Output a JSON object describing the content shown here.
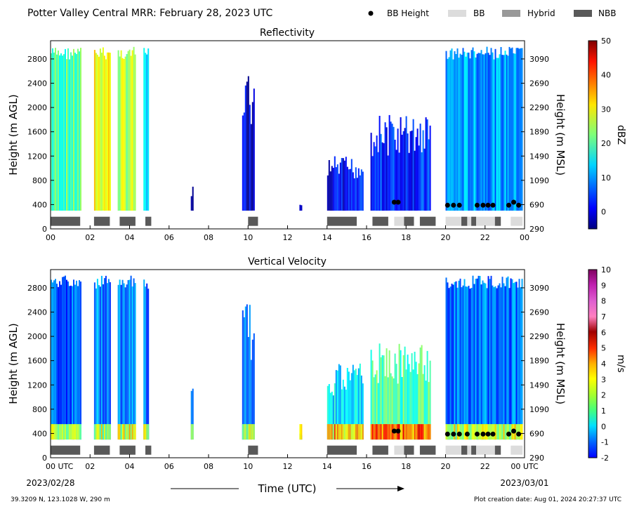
{
  "header": {
    "title": "Potter Valley Central MRR:  February 28, 2023 UTC",
    "legend": {
      "bb_height": "BB Height",
      "bb": "BB",
      "hybrid": "Hybrid",
      "nbb": "NBB"
    }
  },
  "colors": {
    "bb": "#dcdcdc",
    "hybrid": "#999999",
    "nbb": "#595959",
    "bb_height_marker": "#000000"
  },
  "footer": {
    "location": "39.3209 N, 123.1028 W, 290 m",
    "creation": "Plot creation date: Aug 01, 2024 20:27:37 UTC",
    "x_axis_title": "Time (UTC)",
    "start_date": "2023/02/28",
    "end_date": "2023/03/01"
  },
  "chart_data": [
    {
      "type": "heatmap",
      "title": "Reflectivity",
      "ylabel": "Height (m AGL)",
      "ylabel_right": "Height (m MSL)",
      "xlim": [
        0,
        24
      ],
      "ylim": [
        0,
        3100
      ],
      "x_ticks": [
        "00",
        "02",
        "04",
        "06",
        "08",
        "10",
        "12",
        "14",
        "16",
        "18",
        "20",
        "22",
        "00"
      ],
      "y_ticks": [
        0,
        400,
        800,
        1200,
        1600,
        2000,
        2400,
        2800
      ],
      "y_ticks_right": [
        290,
        690,
        1090,
        1490,
        1890,
        2290,
        2690,
        3090
      ],
      "colorbar": {
        "label": "dBZ",
        "min": -5,
        "max": 50,
        "ticks": [
          0,
          10,
          20,
          30,
          40,
          50
        ]
      },
      "precip_segments": [
        {
          "start": 0.0,
          "end": 1.5,
          "top": 3000,
          "level": 0.45
        },
        {
          "start": 2.2,
          "end": 3.0,
          "top": 3000,
          "level": 0.62
        },
        {
          "start": 3.4,
          "end": 4.3,
          "top": 3000,
          "level": 0.55
        },
        {
          "start": 4.7,
          "end": 4.95,
          "top": 3000,
          "level": 0.3
        },
        {
          "start": 7.1,
          "end": 7.2,
          "top": 700,
          "level": 0.08
        },
        {
          "start": 9.7,
          "end": 10.3,
          "top": 2600,
          "level": 0.1
        },
        {
          "start": 12.6,
          "end": 12.7,
          "top": 400,
          "level": 0.1
        },
        {
          "start": 14.0,
          "end": 15.8,
          "top": 1200,
          "level": 0.12
        },
        {
          "start": 16.2,
          "end": 19.2,
          "top": 1900,
          "level": 0.16
        },
        {
          "start": 20.0,
          "end": 23.9,
          "top": 3000,
          "level": 0.28
        }
      ],
      "bb_classification": [
        {
          "start": 0.0,
          "end": 1.5,
          "class": "NBB"
        },
        {
          "start": 2.2,
          "end": 3.0,
          "class": "NBB"
        },
        {
          "start": 3.5,
          "end": 4.3,
          "class": "NBB"
        },
        {
          "start": 4.8,
          "end": 5.1,
          "class": "NBB"
        },
        {
          "start": 10.0,
          "end": 10.5,
          "class": "NBB"
        },
        {
          "start": 14.0,
          "end": 15.5,
          "class": "NBB"
        },
        {
          "start": 16.3,
          "end": 17.1,
          "class": "NBB"
        },
        {
          "start": 17.4,
          "end": 17.9,
          "class": "BB"
        },
        {
          "start": 17.9,
          "end": 18.4,
          "class": "NBB"
        },
        {
          "start": 18.7,
          "end": 19.5,
          "class": "NBB"
        },
        {
          "start": 20.0,
          "end": 20.8,
          "class": "BB"
        },
        {
          "start": 20.8,
          "end": 21.1,
          "class": "NBB"
        },
        {
          "start": 21.1,
          "end": 21.3,
          "class": "BB"
        },
        {
          "start": 21.3,
          "end": 21.55,
          "class": "NBB"
        },
        {
          "start": 21.55,
          "end": 22.5,
          "class": "BB"
        },
        {
          "start": 22.5,
          "end": 22.8,
          "class": "NBB"
        },
        {
          "start": 23.3,
          "end": 23.9,
          "class": "BB"
        }
      ],
      "bb_heights": [
        {
          "x": 17.4,
          "y": 440
        },
        {
          "x": 17.6,
          "y": 440
        },
        {
          "x": 20.1,
          "y": 390
        },
        {
          "x": 20.4,
          "y": 390
        },
        {
          "x": 20.7,
          "y": 390
        },
        {
          "x": 21.6,
          "y": 390
        },
        {
          "x": 21.9,
          "y": 390
        },
        {
          "x": 22.15,
          "y": 390
        },
        {
          "x": 22.4,
          "y": 390
        },
        {
          "x": 23.2,
          "y": 390
        },
        {
          "x": 23.45,
          "y": 440
        },
        {
          "x": 23.7,
          "y": 390
        }
      ]
    },
    {
      "type": "heatmap",
      "title": "Vertical Velocity",
      "ylabel": "Height (m AGL)",
      "ylabel_right": "Height (m MSL)",
      "xlim": [
        0,
        24
      ],
      "ylim": [
        0,
        3100
      ],
      "x_ticks": [
        "00 UTC",
        "02",
        "04",
        "06",
        "08",
        "10",
        "12",
        "14",
        "16",
        "18",
        "20",
        "22",
        "00 UTC"
      ],
      "y_ticks": [
        0,
        400,
        800,
        1200,
        1600,
        2000,
        2400,
        2800
      ],
      "y_ticks_right": [
        290,
        690,
        1090,
        1490,
        1890,
        2290,
        2690,
        3090
      ],
      "colorbar": {
        "label": "m/s",
        "min": -2,
        "max": 10,
        "ticks": [
          -2,
          -1,
          0,
          1,
          2,
          3,
          4,
          5,
          6,
          7,
          8,
          9,
          10
        ]
      },
      "precip_segments": [
        {
          "start": 0.0,
          "end": 1.5,
          "top": 3000,
          "level": 0.22
        },
        {
          "start": 2.2,
          "end": 3.0,
          "top": 3000,
          "level": 0.26
        },
        {
          "start": 3.4,
          "end": 4.3,
          "top": 3000,
          "level": 0.25
        },
        {
          "start": 4.7,
          "end": 4.95,
          "top": 3000,
          "level": 0.24
        },
        {
          "start": 7.1,
          "end": 7.2,
          "top": 1300,
          "level": 0.28
        },
        {
          "start": 9.7,
          "end": 10.3,
          "top": 2600,
          "level": 0.26
        },
        {
          "start": 12.6,
          "end": 12.7,
          "top": 400,
          "level": 0.35
        },
        {
          "start": 14.0,
          "end": 15.8,
          "top": 1600,
          "level": 0.35
        },
        {
          "start": 16.2,
          "end": 19.2,
          "top": 1900,
          "level": 0.45
        },
        {
          "start": 20.0,
          "end": 23.9,
          "top": 3000,
          "level": 0.24
        }
      ],
      "bb_classification": [
        {
          "start": 0.0,
          "end": 1.5,
          "class": "NBB"
        },
        {
          "start": 2.2,
          "end": 3.0,
          "class": "NBB"
        },
        {
          "start": 3.5,
          "end": 4.3,
          "class": "NBB"
        },
        {
          "start": 4.8,
          "end": 5.1,
          "class": "NBB"
        },
        {
          "start": 10.0,
          "end": 10.5,
          "class": "NBB"
        },
        {
          "start": 14.0,
          "end": 15.5,
          "class": "NBB"
        },
        {
          "start": 16.3,
          "end": 17.1,
          "class": "NBB"
        },
        {
          "start": 17.4,
          "end": 17.9,
          "class": "BB"
        },
        {
          "start": 17.9,
          "end": 18.4,
          "class": "NBB"
        },
        {
          "start": 18.7,
          "end": 19.5,
          "class": "NBB"
        },
        {
          "start": 20.0,
          "end": 20.8,
          "class": "BB"
        },
        {
          "start": 20.8,
          "end": 21.1,
          "class": "NBB"
        },
        {
          "start": 21.1,
          "end": 21.3,
          "class": "BB"
        },
        {
          "start": 21.3,
          "end": 21.55,
          "class": "NBB"
        },
        {
          "start": 21.55,
          "end": 22.5,
          "class": "BB"
        },
        {
          "start": 22.5,
          "end": 22.8,
          "class": "NBB"
        },
        {
          "start": 23.3,
          "end": 23.9,
          "class": "BB"
        }
      ],
      "bb_heights": [
        {
          "x": 17.4,
          "y": 440
        },
        {
          "x": 17.6,
          "y": 440
        },
        {
          "x": 20.1,
          "y": 390
        },
        {
          "x": 20.4,
          "y": 390
        },
        {
          "x": 20.7,
          "y": 390
        },
        {
          "x": 21.1,
          "y": 390
        },
        {
          "x": 21.6,
          "y": 390
        },
        {
          "x": 21.9,
          "y": 390
        },
        {
          "x": 22.15,
          "y": 390
        },
        {
          "x": 22.4,
          "y": 390
        },
        {
          "x": 23.2,
          "y": 390
        },
        {
          "x": 23.45,
          "y": 440
        },
        {
          "x": 23.7,
          "y": 390
        }
      ]
    }
  ]
}
